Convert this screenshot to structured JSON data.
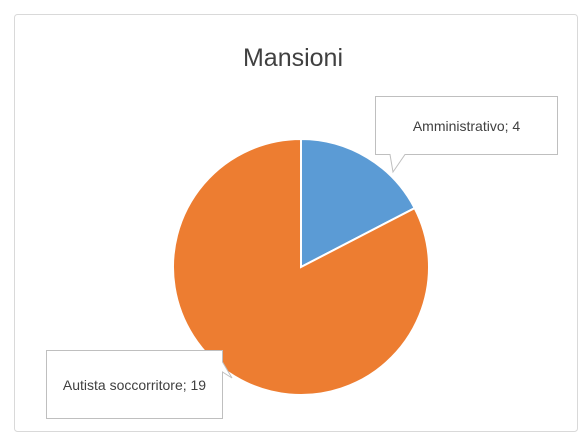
{
  "chart_data": {
    "type": "pie",
    "title": "Mansioni",
    "values": [
      4,
      19
    ],
    "value_labels": [
      "Amministrativo; 4",
      "Autista soccorritore; 19"
    ],
    "colors": [
      "#5b9bd5",
      "#ed7d31"
    ]
  }
}
